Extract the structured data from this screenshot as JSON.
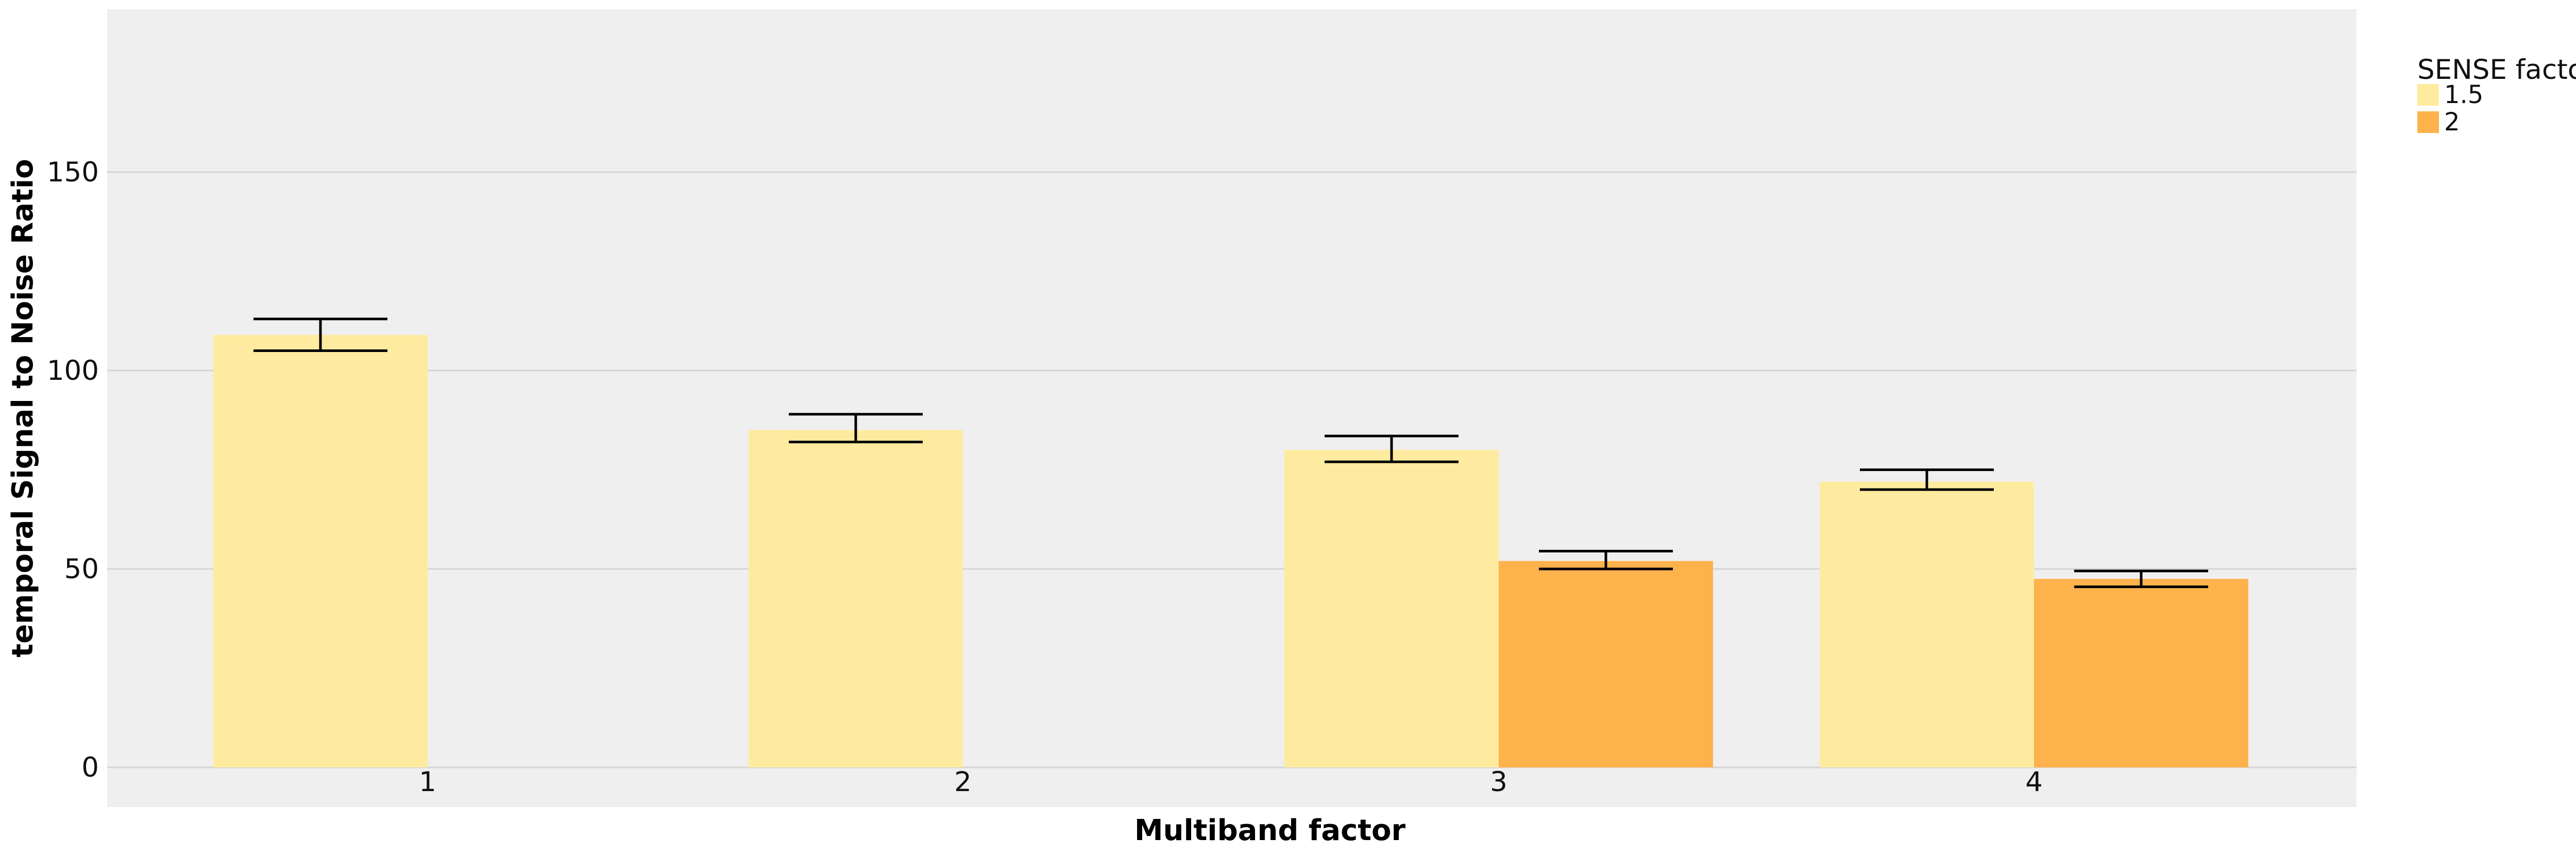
{
  "chart_data": {
    "type": "bar",
    "categories": [
      "1",
      "2",
      "3",
      "4"
    ],
    "xlabel": "Multiband factor",
    "ylabel": "temporal Signal to Noise Ratio",
    "y_ticks": [
      "0",
      "50",
      "100",
      "150"
    ],
    "ylim": [
      0,
      190
    ],
    "grid": true,
    "legend_title": "SENSE factor",
    "legend_position": "right",
    "series": [
      {
        "name": "1.5",
        "color": "#FFEB9F",
        "values": [
          109,
          85,
          80,
          72
        ],
        "error_low": [
          105,
          82,
          77,
          70
        ],
        "error_high": [
          113,
          89,
          83.5,
          75
        ]
      },
      {
        "name": "2",
        "color": "#FEB24C",
        "values": [
          null,
          null,
          52,
          47.5
        ],
        "error_low": [
          null,
          null,
          50,
          45.5
        ],
        "error_high": [
          null,
          null,
          54.5,
          49.5
        ]
      }
    ]
  }
}
